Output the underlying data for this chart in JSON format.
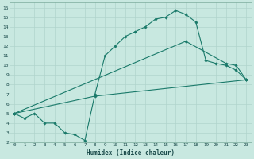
{
  "xlabel": "Humidex (Indice chaleur)",
  "bg_color": "#c8e8e0",
  "grid_color": "#b0d4cc",
  "line_color": "#1a7a6a",
  "xlim": [
    -0.5,
    23.5
  ],
  "ylim": [
    2,
    16.5
  ],
  "xticks": [
    0,
    1,
    2,
    3,
    4,
    5,
    6,
    7,
    8,
    9,
    10,
    11,
    12,
    13,
    14,
    15,
    16,
    17,
    18,
    19,
    20,
    21,
    22,
    23
  ],
  "yticks": [
    2,
    3,
    4,
    5,
    6,
    7,
    8,
    9,
    10,
    11,
    12,
    13,
    14,
    15,
    16
  ],
  "line1_x": [
    0,
    1,
    2,
    3,
    4,
    5,
    6,
    7,
    8,
    9,
    10,
    11,
    12,
    13,
    14,
    15,
    16,
    17,
    18,
    19,
    20,
    21,
    22,
    23
  ],
  "line1_y": [
    5.0,
    4.5,
    5.0,
    4.0,
    4.0,
    3.0,
    2.8,
    2.2,
    7.0,
    11.0,
    12.0,
    13.0,
    13.5,
    14.0,
    14.8,
    15.0,
    15.7,
    15.3,
    14.5,
    10.5,
    10.2,
    10.0,
    9.5,
    8.5
  ],
  "line2_x": [
    0,
    17,
    21,
    22,
    23
  ],
  "line2_y": [
    5.0,
    12.5,
    10.2,
    10.0,
    8.5
  ],
  "line3_x": [
    0,
    8,
    23
  ],
  "line3_y": [
    5.0,
    6.8,
    8.5
  ]
}
